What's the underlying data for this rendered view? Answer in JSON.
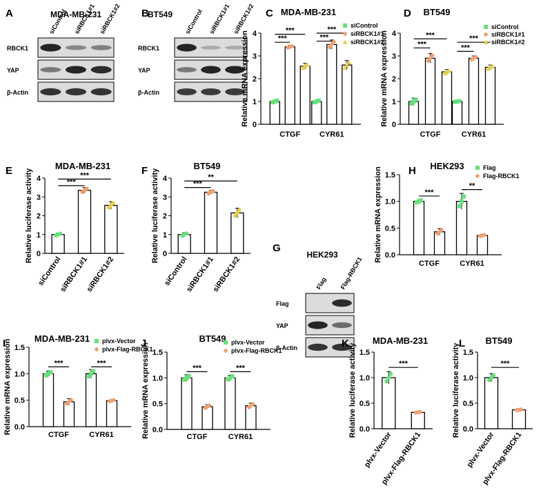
{
  "colors": {
    "bar_fill": "#ffffff",
    "bar_edge": "#000000",
    "sicontrol": "#66e07a",
    "sirbck1_1": "#f0a070",
    "sirbck1_2": "#e8d050",
    "flag": "#66e07a",
    "flag_rbck1": "#f0a070",
    "blot_band": "#1a1a1a",
    "blot_bg": "#dcdcdc"
  },
  "chart_data": [
    {
      "panel": "A",
      "type": "western_blot",
      "title": "MDA-MB-231",
      "lanes": [
        "siControl",
        "siRBCK1#1",
        "siRBCK1#2"
      ],
      "rows": [
        {
          "label": "RBCK1",
          "intensity": [
            1.0,
            0.35,
            0.4
          ]
        },
        {
          "label": "YAP",
          "intensity": [
            0.45,
            1.0,
            0.95
          ]
        },
        {
          "label": "β-Actin",
          "intensity": [
            0.9,
            0.9,
            0.9
          ]
        }
      ]
    },
    {
      "panel": "B",
      "type": "western_blot",
      "title": "BT549",
      "lanes": [
        "siControl",
        "siRBCK1#1",
        "siRBCK1#2"
      ],
      "rows": [
        {
          "label": "RBCK1",
          "intensity": [
            1.0,
            0.12,
            0.12
          ]
        },
        {
          "label": "YAP",
          "intensity": [
            0.45,
            1.0,
            1.0
          ]
        },
        {
          "label": "β-Actin",
          "intensity": [
            0.85,
            0.85,
            0.85
          ]
        }
      ]
    },
    {
      "panel": "C",
      "type": "bar",
      "title": "MDA-MB-231",
      "ylabel": "Relative mRNA expression",
      "ylim": [
        0,
        4
      ],
      "yticks": [
        "0",
        "1",
        "2",
        "3",
        "4"
      ],
      "categories": [
        "CTGF",
        "CYR61"
      ],
      "series": [
        {
          "name": "siControl",
          "marker": "square",
          "values": [
            1.0,
            1.0
          ],
          "err": [
            0.06,
            0.06
          ]
        },
        {
          "name": "siRBCK1#1",
          "marker": "diamond",
          "values": [
            3.4,
            3.5
          ],
          "err": [
            0.06,
            0.2
          ]
        },
        {
          "name": "siRBCK1#2",
          "marker": "triangle",
          "values": [
            2.55,
            2.6
          ],
          "err": [
            0.12,
            0.2
          ]
        }
      ],
      "significance": [
        {
          "cat": 0,
          "from": 0,
          "to": 1,
          "label": "***",
          "y": 3.6
        },
        {
          "cat": 0,
          "from": 0,
          "to": 2,
          "label": "***",
          "y": 3.95
        },
        {
          "cat": 1,
          "from": 0,
          "to": 1,
          "label": "***",
          "y": 3.65
        },
        {
          "cat": 1,
          "from": 0,
          "to": 2,
          "label": "***",
          "y": 4.0
        }
      ]
    },
    {
      "panel": "D",
      "type": "bar",
      "title": "BT549",
      "ylabel": "Relative mRNA expression",
      "ylim": [
        0,
        4
      ],
      "yticks": [
        "0",
        "1",
        "2",
        "3",
        "4"
      ],
      "categories": [
        "CTGF",
        "CYR61"
      ],
      "series": [
        {
          "name": "siControl",
          "marker": "square",
          "values": [
            1.0,
            1.0
          ],
          "err": [
            0.15,
            0.03
          ]
        },
        {
          "name": "siRBCK1#1",
          "marker": "diamond",
          "values": [
            2.9,
            2.9
          ],
          "err": [
            0.2,
            0.1
          ]
        },
        {
          "name": "siRBCK1#2",
          "marker": "triangle",
          "values": [
            2.3,
            2.5
          ],
          "err": [
            0.1,
            0.1
          ]
        }
      ],
      "significance": [
        {
          "cat": 0,
          "from": 0,
          "to": 1,
          "label": "***",
          "y": 3.35
        },
        {
          "cat": 0,
          "from": 0,
          "to": 2,
          "label": "***",
          "y": 3.75
        },
        {
          "cat": 1,
          "from": 0,
          "to": 1,
          "label": "***",
          "y": 3.2
        },
        {
          "cat": 1,
          "from": 0,
          "to": 2,
          "label": "***",
          "y": 3.6
        }
      ]
    },
    {
      "panel": "E",
      "type": "bar",
      "title": "MDA-MB-231",
      "ylabel": "Relative luciferase activity",
      "ylim": [
        0,
        4
      ],
      "yticks": [
        "0",
        "1",
        "2",
        "3",
        "4"
      ],
      "categories": [
        "siControl",
        "siRBCK1#1",
        "siRBCK1#2"
      ],
      "series": [
        {
          "name": "",
          "values": [
            1.0,
            3.35,
            2.55
          ],
          "err": [
            0.08,
            0.15,
            0.2
          ]
        }
      ],
      "significance": [
        {
          "from": 0,
          "to": 1,
          "label": "***",
          "y": 3.6
        },
        {
          "from": 0,
          "to": 2,
          "label": "***",
          "y": 3.95
        }
      ]
    },
    {
      "panel": "F",
      "type": "bar",
      "title": "BT549",
      "ylabel": "Relative luciferase activity",
      "ylim": [
        0,
        4
      ],
      "yticks": [
        "0",
        "1",
        "2",
        "3",
        "4"
      ],
      "categories": [
        "siControl",
        "siRBCK1#1",
        "siRBCK1#2"
      ],
      "series": [
        {
          "name": "",
          "values": [
            1.0,
            3.25,
            2.15
          ],
          "err": [
            0.1,
            0.1,
            0.25
          ]
        }
      ],
      "significance": [
        {
          "from": 0,
          "to": 1,
          "label": "***",
          "y": 3.5
        },
        {
          "from": 0,
          "to": 2,
          "label": "**",
          "y": 3.85
        }
      ]
    },
    {
      "panel": "G",
      "type": "western_blot",
      "title": "HEK293",
      "lanes": [
        "Flag",
        "Flag-RBCK1"
      ],
      "rows": [
        {
          "label": "Flag",
          "intensity": [
            0.0,
            0.95
          ]
        },
        {
          "label": "YAP",
          "intensity": [
            1.0,
            0.55
          ]
        },
        {
          "label": "β-Actin",
          "intensity": [
            0.9,
            0.9
          ]
        }
      ]
    },
    {
      "panel": "H",
      "type": "bar",
      "title": "HEK293",
      "ylabel": "Relative mRNA expression",
      "ylim": [
        0,
        1.5
      ],
      "yticks": [
        "0.0",
        "0.5",
        "1.0",
        "1.5"
      ],
      "categories": [
        "CTGF",
        "CYR61"
      ],
      "series": [
        {
          "name": "Flag",
          "marker": "square",
          "values": [
            1.0,
            1.0
          ],
          "err": [
            0.03,
            0.15
          ]
        },
        {
          "name": "Flag-RBCK1",
          "marker": "diamond",
          "values": [
            0.43,
            0.36
          ],
          "err": [
            0.06,
            0.02
          ]
        }
      ],
      "significance": [
        {
          "cat": 0,
          "from": 0,
          "to": 1,
          "label": "***",
          "y": 1.1
        },
        {
          "cat": 1,
          "from": 0,
          "to": 1,
          "label": "**",
          "y": 1.22
        }
      ]
    },
    {
      "panel": "I",
      "type": "bar",
      "title": "MDA-MB-231",
      "ylabel": "Relative mRNA expression",
      "ylim": [
        0,
        1.5
      ],
      "yticks": [
        "0.0",
        "0.5",
        "1.0",
        "1.5"
      ],
      "categories": [
        "CTGF",
        "CYR61"
      ],
      "series": [
        {
          "name": "plvx-Vector",
          "marker": "square",
          "values": [
            1.0,
            1.0
          ],
          "err": [
            0.05,
            0.08
          ]
        },
        {
          "name": "plvx-Flag-RBCK1",
          "marker": "diamond",
          "values": [
            0.47,
            0.49
          ],
          "err": [
            0.06,
            0.02
          ]
        }
      ],
      "significance": [
        {
          "cat": 0,
          "from": 0,
          "to": 1,
          "label": "***",
          "y": 1.13
        },
        {
          "cat": 1,
          "from": 0,
          "to": 1,
          "label": "***",
          "y": 1.13
        }
      ]
    },
    {
      "panel": "J",
      "type": "bar",
      "title": "BT549",
      "ylabel": "Relative mRNA expression",
      "ylim": [
        0,
        1.5
      ],
      "yticks": [
        "0.0",
        "0.5",
        "1.0",
        "1.5"
      ],
      "categories": [
        "CTGF",
        "CYR61"
      ],
      "series": [
        {
          "name": "plvx-Vector",
          "marker": "square",
          "values": [
            1.0,
            1.0
          ],
          "err": [
            0.06,
            0.05
          ]
        },
        {
          "name": "plvx-Flag-RBCK1",
          "marker": "diamond",
          "values": [
            0.44,
            0.46
          ],
          "err": [
            0.04,
            0.05
          ]
        }
      ],
      "significance": [
        {
          "cat": 0,
          "from": 0,
          "to": 1,
          "label": "***",
          "y": 1.12
        },
        {
          "cat": 1,
          "from": 0,
          "to": 1,
          "label": "***",
          "y": 1.12
        }
      ]
    },
    {
      "panel": "K",
      "type": "bar",
      "title": "MDA-MB-231",
      "ylabel": "Relative luciferase activity",
      "ylim": [
        0,
        1.5
      ],
      "yticks": [
        "0.0",
        "0.5",
        "1.0",
        "1.5"
      ],
      "categories": [
        "plvx-Vector",
        "plvx-Flag-RBCK1"
      ],
      "series": [
        {
          "name": "",
          "values": [
            1.0,
            0.32
          ],
          "err": [
            0.12,
            0.01
          ]
        }
      ],
      "significance": [
        {
          "from": 0,
          "to": 1,
          "label": "***",
          "y": 1.2
        }
      ]
    },
    {
      "panel": "L",
      "type": "bar",
      "title": "BT549",
      "ylabel": "Relative luciferase activity",
      "ylim": [
        0,
        1.5
      ],
      "yticks": [
        "0.0",
        "0.5",
        "1.0",
        "1.5"
      ],
      "categories": [
        "plvx-Vector",
        "plvx-Flag-RBCK1"
      ],
      "series": [
        {
          "name": "",
          "values": [
            1.0,
            0.37
          ],
          "err": [
            0.08,
            0.01
          ]
        }
      ],
      "significance": [
        {
          "from": 0,
          "to": 1,
          "label": "***",
          "y": 1.2
        }
      ]
    }
  ]
}
